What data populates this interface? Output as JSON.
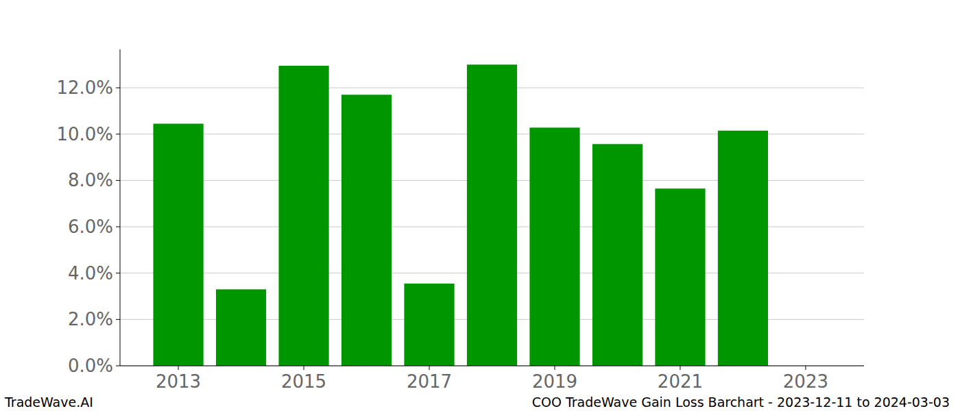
{
  "chart_data": {
    "type": "bar",
    "title": "COO TradeWave Gain Loss Barchart - 2023-12-11 to 2024-03-03",
    "annotations": [
      "TradeWave.AI"
    ],
    "x": [
      2013,
      2014,
      2015,
      2016,
      2017,
      2018,
      2019,
      2020,
      2021,
      2022
    ],
    "values": [
      10.45,
      3.3,
      12.95,
      11.7,
      3.55,
      13.0,
      10.28,
      9.57,
      7.65,
      10.15
    ],
    "color": "#009600",
    "xlim": [
      2012.07,
      2023.93
    ],
    "xticks": [
      2013,
      2015,
      2017,
      2019,
      2021,
      2023
    ],
    "ylim": [
      0,
      13.66
    ],
    "yticks": [
      {
        "value": 0,
        "label": "0.0%"
      },
      {
        "value": 2,
        "label": "2.0%"
      },
      {
        "value": 4,
        "label": "4.0%"
      },
      {
        "value": 6,
        "label": "6.0%"
      },
      {
        "value": 8,
        "label": "8.0%"
      },
      {
        "value": 10,
        "label": "10.0%"
      },
      {
        "value": 12,
        "label": "12.0%"
      }
    ],
    "grid": true
  }
}
